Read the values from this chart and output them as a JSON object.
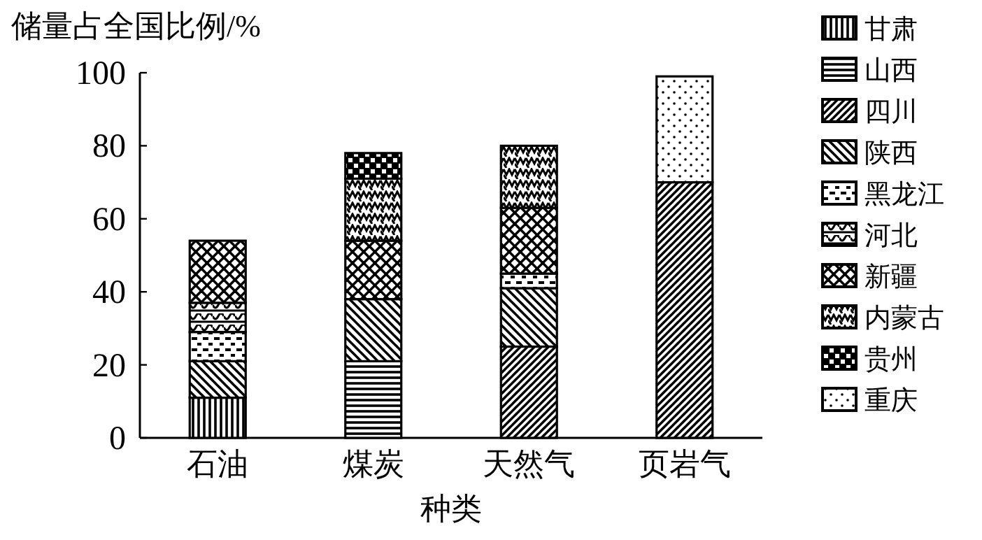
{
  "chart_data": {
    "type": "bar",
    "stacked": true,
    "ylabel": "储量占全国比例/%",
    "xlabel": "种类",
    "categories": [
      "石油",
      "煤炭",
      "天然气",
      "页岩气"
    ],
    "ylim": [
      0,
      100
    ],
    "yticks": [
      0,
      20,
      40,
      60,
      80,
      100
    ],
    "grid": false,
    "legend": "right",
    "series": [
      {
        "name": "甘肃",
        "color": "#000000",
        "values": [
          11,
          null,
          null,
          null
        ]
      },
      {
        "name": "山西",
        "color": "#000000",
        "values": [
          null,
          21,
          null,
          null
        ]
      },
      {
        "name": "四川",
        "color": "#000000",
        "values": [
          null,
          null,
          25,
          70
        ]
      },
      {
        "name": "陕西",
        "color": "#000000",
        "values": [
          10,
          17,
          16,
          null
        ]
      },
      {
        "name": "黑龙江",
        "color": "#000000",
        "values": [
          8,
          null,
          4,
          null
        ]
      },
      {
        "name": "河北",
        "color": "#000000",
        "values": [
          8,
          null,
          null,
          null
        ]
      },
      {
        "name": "新疆",
        "color": "#000000",
        "values": [
          17,
          16,
          18,
          null
        ]
      },
      {
        "name": "内蒙古",
        "color": "#000000",
        "values": [
          null,
          17,
          17,
          null
        ]
      },
      {
        "name": "贵州",
        "color": "#000000",
        "values": [
          null,
          7,
          null,
          null
        ]
      },
      {
        "name": "重庆",
        "color": "#000000",
        "values": [
          null,
          null,
          null,
          29
        ]
      }
    ]
  }
}
